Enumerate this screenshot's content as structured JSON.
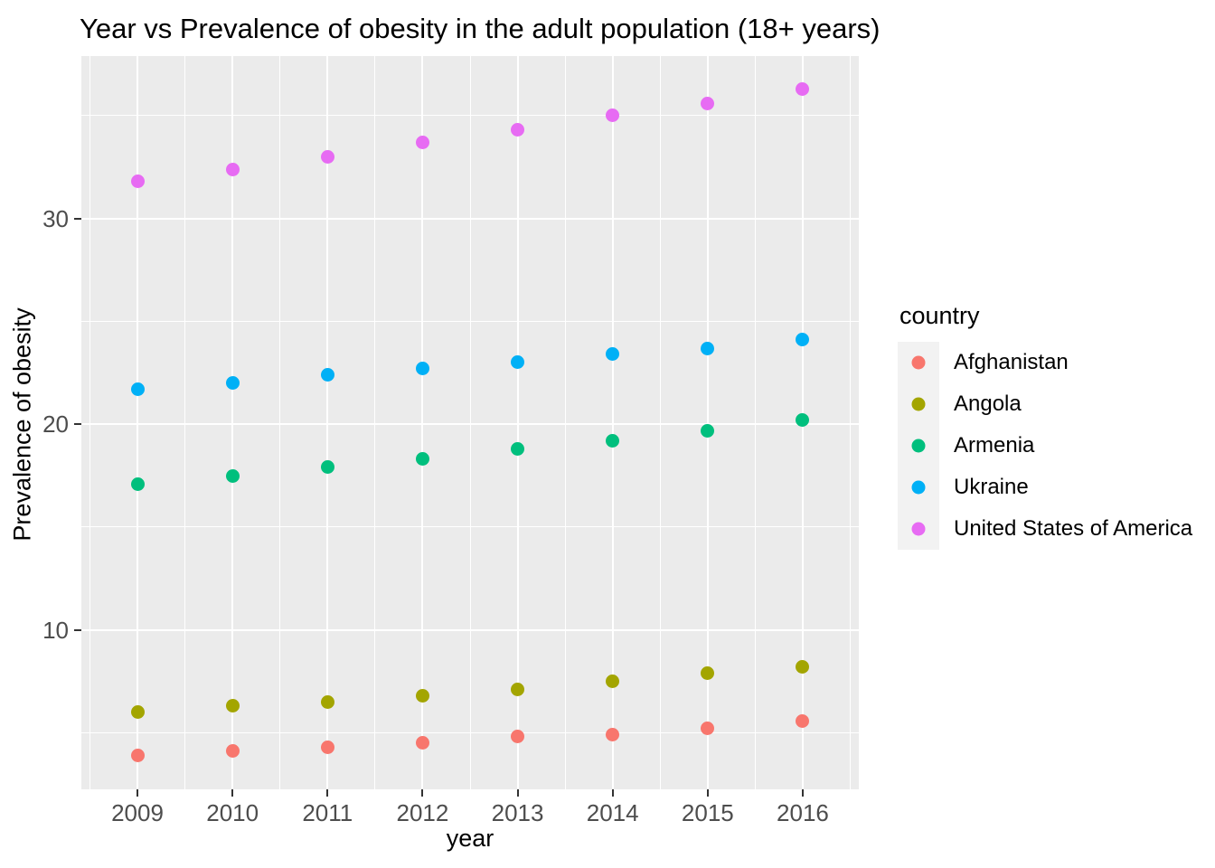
{
  "title": "Year vs Prevalence of obesity in the adult population (18+ years)",
  "chart_data": {
    "type": "scatter",
    "title": "Year vs Prevalence of obesity in the adult population (18+ years)",
    "xlabel": "year",
    "ylabel": "Prevalence of obesity",
    "legend_title": "country",
    "legend_position": "right",
    "grid": true,
    "x": [
      2009,
      2010,
      2011,
      2012,
      2013,
      2014,
      2015,
      2016
    ],
    "series": [
      {
        "name": "Afghanistan",
        "color": "#F8766D",
        "values": [
          3.9,
          4.1,
          4.3,
          4.5,
          4.8,
          4.9,
          5.2,
          5.55
        ]
      },
      {
        "name": "Angola",
        "color": "#A3A500",
        "values": [
          6.0,
          6.3,
          6.5,
          6.8,
          7.1,
          7.5,
          7.9,
          8.2
        ]
      },
      {
        "name": "Armenia",
        "color": "#00BF7D",
        "values": [
          17.1,
          17.5,
          17.9,
          18.3,
          18.8,
          19.2,
          19.7,
          20.2
        ]
      },
      {
        "name": "Ukraine",
        "color": "#00B0F6",
        "values": [
          21.7,
          22.0,
          22.4,
          22.7,
          23.0,
          23.4,
          23.7,
          24.1
        ]
      },
      {
        "name": "United States of America",
        "color": "#E76BF3",
        "values": [
          31.8,
          32.4,
          33.0,
          33.7,
          34.3,
          35.0,
          35.6,
          36.3
        ]
      }
    ],
    "x_ticks": [
      2009,
      2010,
      2011,
      2012,
      2013,
      2014,
      2015,
      2016
    ],
    "x_minor": [
      2008.5,
      2009.5,
      2010.5,
      2011.5,
      2012.5,
      2013.5,
      2014.5,
      2015.5,
      2016.5
    ],
    "y_ticks": [
      10,
      20,
      30
    ],
    "y_minor": [
      5,
      15,
      25,
      35
    ],
    "xlim": [
      2008.41,
      2016.59
    ],
    "ylim": [
      2.25,
      37.9
    ]
  },
  "colors": {
    "panel_background": "#EBEBEB",
    "gridline": "#FFFFFF",
    "tick_text": "#4D4D4D",
    "tick_mark": "#333333",
    "text": "#000000",
    "legend_key_background": "#F2F2F2"
  }
}
